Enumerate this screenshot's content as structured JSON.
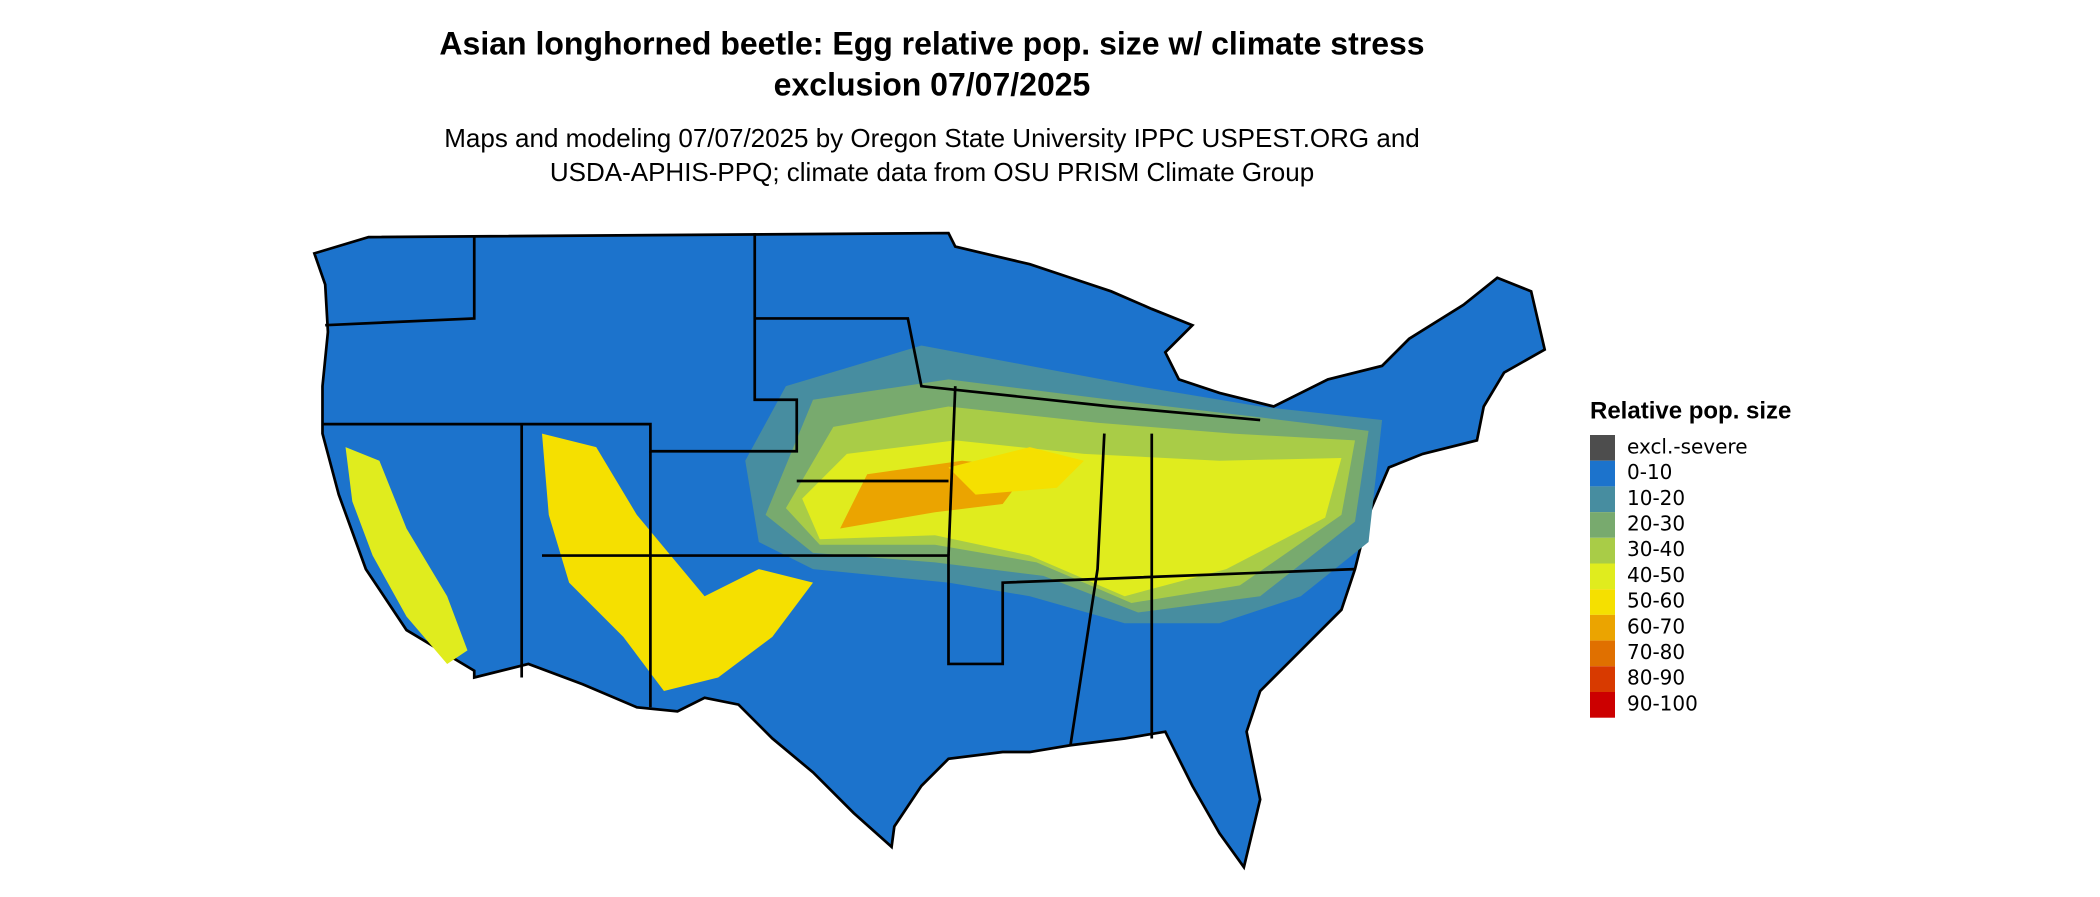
{
  "map": {
    "title": [
      "Asian longhorned beetle: Egg relative pop. size w/ climate stress",
      "exclusion 07/07/2025"
    ],
    "subtitle": [
      "Maps and modeling 07/07/2025 by Oregon State University IPPC USPEST.ORG and",
      "USDA-APHIS-PPQ; climate data from OSU PRISM Climate Group"
    ],
    "legend": {
      "title": "Relative pop. size",
      "items": [
        {
          "label": "excl.-severe",
          "color": "#4d4d4d"
        },
        {
          "label": "0-10",
          "color": "#1c73cc"
        },
        {
          "label": "10-20",
          "color": "#478da0"
        },
        {
          "label": "20-30",
          "color": "#78aa6e"
        },
        {
          "label": "30-40",
          "color": "#a9cc47"
        },
        {
          "label": "40-50",
          "color": "#e0ec1e"
        },
        {
          "label": "50-60",
          "color": "#f5e000"
        },
        {
          "label": "60-70",
          "color": "#eba400"
        },
        {
          "label": "70-80",
          "color": "#e07000"
        },
        {
          "label": "80-90",
          "color": "#d83a00"
        },
        {
          "label": "90-100",
          "color": "#cc0000"
        }
      ]
    }
  }
}
